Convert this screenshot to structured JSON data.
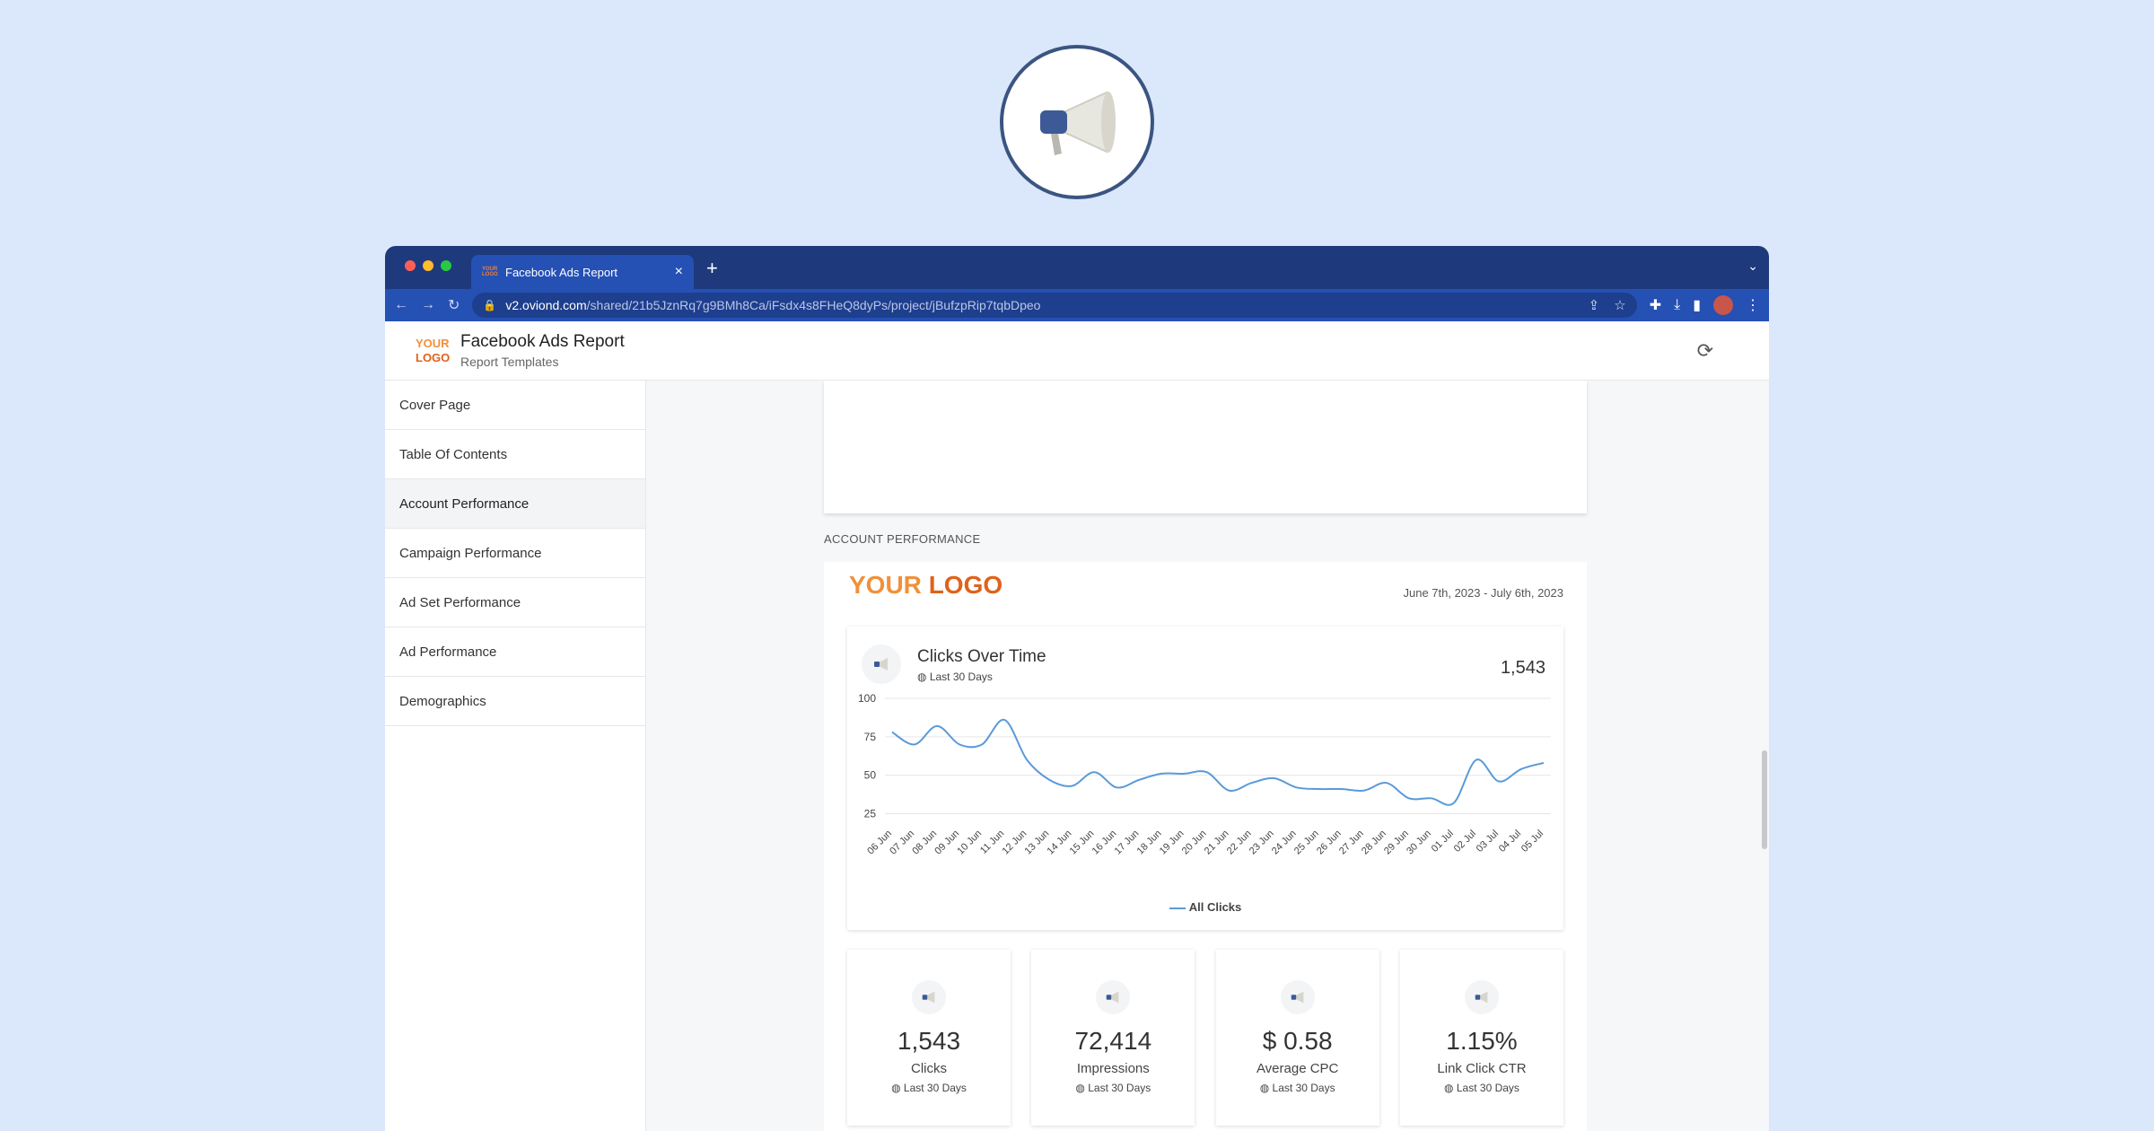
{
  "browser": {
    "tab_title": "Facebook Ads Report",
    "tab_favicon_text": "YOUR LOGO",
    "url_host": "v2.oviond.com",
    "url_path": "/shared/21b5JznRq7g9BMh8Ca/iFsdx4s8FHeQ8dyPs/project/jBufzpRip7tqbDpeo"
  },
  "header": {
    "logo_top": "YOUR",
    "logo_bottom": "LOGO",
    "title": "Facebook Ads Report",
    "subtitle": "Report Templates"
  },
  "sidebar": {
    "items": [
      {
        "label": "Cover Page"
      },
      {
        "label": "Table Of Contents"
      },
      {
        "label": "Account Performance",
        "active": true
      },
      {
        "label": "Campaign Performance"
      },
      {
        "label": "Ad Set Performance"
      },
      {
        "label": "Ad Performance"
      },
      {
        "label": "Demographics"
      }
    ]
  },
  "report": {
    "section_label": "ACCOUNT PERFORMANCE",
    "logo_part1": "YOUR ",
    "logo_part2": "LOGO",
    "date_range": "June 7th, 2023 - July 6th, 2023"
  },
  "chart_header": {
    "title": "Clicks Over Time",
    "period": "Last 30 Days",
    "total": "1,543"
  },
  "chart_data": {
    "type": "line",
    "title": "Clicks Over Time",
    "x": [
      "06 Jun",
      "07 Jun",
      "08 Jun",
      "09 Jun",
      "10 Jun",
      "11 Jun",
      "12 Jun",
      "13 Jun",
      "14 Jun",
      "15 Jun",
      "16 Jun",
      "17 Jun",
      "18 Jun",
      "19 Jun",
      "20 Jun",
      "21 Jun",
      "22 Jun",
      "23 Jun",
      "24 Jun",
      "25 Jun",
      "26 Jun",
      "27 Jun",
      "28 Jun",
      "29 Jun",
      "30 Jun",
      "01 Jul",
      "02 Jul",
      "03 Jul",
      "04 Jul",
      "05 Jul"
    ],
    "series": [
      {
        "name": "All Clicks",
        "values": [
          78,
          70,
          82,
          70,
          70,
          86,
          60,
          47,
          43,
          52,
          42,
          47,
          51,
          51,
          52,
          40,
          45,
          48,
          42,
          41,
          41,
          40,
          45,
          35,
          35,
          32,
          60,
          46,
          54,
          58
        ]
      }
    ],
    "yticks": [
      25,
      50,
      75,
      100
    ],
    "ylim": [
      20,
      100
    ],
    "color": "#5a9ad8",
    "grid": true,
    "legend": "bottom"
  },
  "kpis": [
    {
      "value": "1,543",
      "label": "Clicks",
      "period": "Last 30 Days"
    },
    {
      "value": "72,414",
      "label": "Impressions",
      "period": "Last 30 Days"
    },
    {
      "value": "$ 0.58",
      "label": "Average CPC",
      "period": "Last 30 Days"
    },
    {
      "value": "1.15%",
      "label": "Link Click CTR",
      "period": "Last 30 Days"
    }
  ]
}
